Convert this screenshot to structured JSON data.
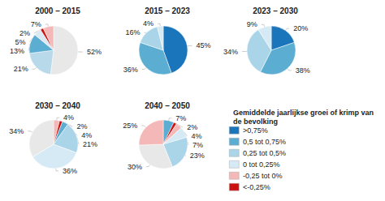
{
  "chart_data": {
    "type": "pie",
    "charts": [
      {
        "title": "2000 – 2015",
        "values": [
          52,
          21,
          13,
          5,
          2,
          7
        ],
        "value_labels": [
          "52%",
          "21%",
          "13%",
          "5%",
          "2%",
          "7%"
        ],
        "colors": [
          "#e8e8e8",
          "#b8d9ea",
          "#5badd1",
          "#daeaf5",
          "#cc1111",
          "#f5b8b8"
        ]
      },
      {
        "title": "2015 – 2023",
        "values": [
          45,
          36,
          16,
          4
        ],
        "value_labels": [
          "45%",
          "36%",
          "16%",
          "4%"
        ],
        "colors": [
          "#1b75bb",
          "#5badd1",
          "#aad4e8",
          "#d6eaf5"
        ]
      },
      {
        "title": "2023 – 2030",
        "values": [
          20,
          38,
          34,
          9
        ],
        "value_labels": [
          "20%",
          "38%",
          "34%",
          "9%"
        ],
        "colors": [
          "#1b75bb",
          "#5badd1",
          "#aad4e8",
          "#d6eaf5"
        ]
      },
      {
        "title": "2030 – 2040",
        "values": [
          4,
          2,
          4,
          21,
          36,
          34
        ],
        "value_labels": [
          "4%",
          "2%",
          "4%",
          "21%",
          "36%",
          "34%"
        ],
        "colors": [
          "#f5b8b8",
          "#cc1111",
          "#5badd1",
          "#aad4e8",
          "#d6eaf5",
          "#e8e8e8"
        ]
      },
      {
        "title": "2040 – 2050",
        "values": [
          7,
          2,
          4,
          7,
          23,
          30,
          25
        ],
        "value_labels": [
          "7%",
          "2%",
          "4%",
          "7%",
          "23%",
          "30%",
          "25%"
        ],
        "colors": [
          "#5badd1",
          "#cc1111",
          "#f5b8b8",
          "#d6eaf5",
          "#aad4e8",
          "#e8e8e8",
          "#f5b8b8"
        ]
      }
    ],
    "legend_title": "Gemiddelde jaarlijkse groei of krimp van de bevolking",
    "series": [
      {
        "name": ">0,75%",
        "color": "#1b75bb"
      },
      {
        "name": "0,5 tot 0,75%",
        "color": "#5badd1"
      },
      {
        "name": "0,25 tot 0,5%",
        "color": "#aad4e8"
      },
      {
        "name": "0 tot 0,25%",
        "color": "#d6eaf5"
      },
      {
        "name": "-0,25 tot 0%",
        "color": "#f5b8b8"
      },
      {
        "name": "<-0,25%",
        "color": "#cc1111"
      }
    ]
  }
}
